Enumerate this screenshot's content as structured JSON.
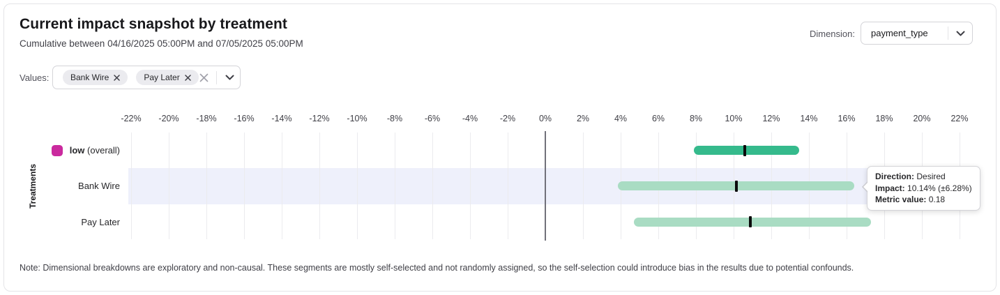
{
  "header": {
    "title": "Current impact snapshot by treatment",
    "subtitle": "Cumulative between 04/16/2025 05:00PM and 07/05/2025 05:00PM",
    "dimension_label": "Dimension:",
    "dimension_value": "payment_type"
  },
  "filters": {
    "label": "Values:",
    "chips": [
      "Bank Wire",
      "Pay Later"
    ]
  },
  "chart_data": {
    "type": "bar",
    "subtype": "horizontal_range_bar_with_confidence_interval",
    "ylabel": "Treatments",
    "x_unit": "%",
    "xlim": [
      -22,
      22
    ],
    "ticks": [
      -22,
      -20,
      -18,
      -16,
      -14,
      -12,
      -10,
      -8,
      -6,
      -4,
      -2,
      0,
      2,
      4,
      6,
      8,
      10,
      12,
      14,
      16,
      18,
      20,
      22
    ],
    "grid": true,
    "zero_line": true,
    "rows": [
      {
        "label": "low",
        "suffix": "(overall)",
        "kind": "overall",
        "impact_pct": 10.6,
        "ci_low_pct": 7.9,
        "ci_high_pct": 13.5,
        "highlighted": false
      },
      {
        "label": "Bank Wire",
        "kind": "segment",
        "impact_pct": 10.14,
        "ci_low_pct": 3.86,
        "ci_high_pct": 16.42,
        "highlighted": true
      },
      {
        "label": "Pay Later",
        "kind": "segment",
        "impact_pct": 10.9,
        "ci_low_pct": 4.7,
        "ci_high_pct": 17.3,
        "highlighted": false
      }
    ],
    "colors": {
      "overall_bar": "#35ba8c",
      "segment_bar": "#a9dcc3",
      "overall_swatch": "#ca2a9e",
      "highlight_band": "#eef0fb",
      "marker": "#0b0b0c"
    }
  },
  "tooltip": {
    "lines": [
      {
        "label": "Direction:",
        "value": "Desired"
      },
      {
        "label": "Impact:",
        "value": "10.14% (±6.28%)"
      },
      {
        "label": "Metric value:",
        "value": "0.18"
      }
    ]
  },
  "note": "Note: Dimensional breakdowns are exploratory and non-causal. These segments are mostly self-selected and not randomly assigned, so the self-selection could introduce bias in the results due to potential confounds."
}
